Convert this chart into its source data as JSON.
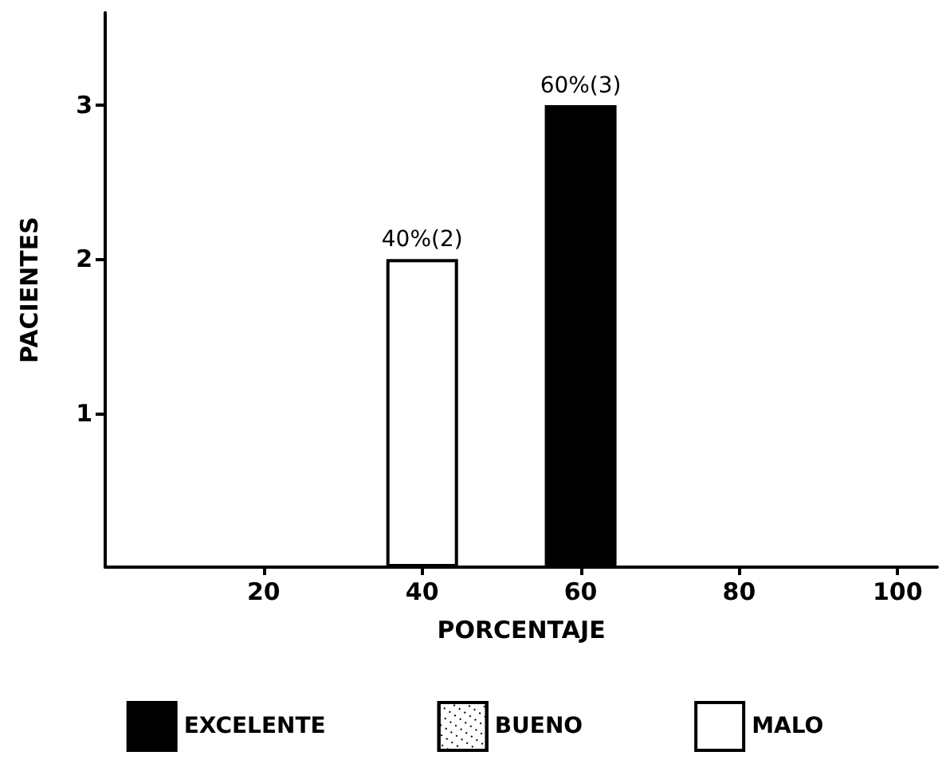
{
  "chart_data": {
    "type": "bar",
    "xlabel": "PORCENTAJE",
    "ylabel": "PACIENTES",
    "xlim": [
      0,
      105
    ],
    "xticks": [
      20,
      40,
      60,
      80,
      100
    ],
    "ylim": [
      0,
      3.6
    ],
    "yticks": [
      1,
      2,
      3
    ],
    "grid": false,
    "legend": "bottom",
    "series": [
      {
        "name": "EXCELENTE",
        "color": "#000000",
        "x": [
          60
        ],
        "values": [
          3
        ],
        "value_labels": [
          "60%(3)"
        ]
      },
      {
        "name": "BUENO",
        "color": "#ffffff"
      },
      {
        "name": "MALO",
        "color": "#ffffff",
        "x": [
          40
        ],
        "values": [
          2
        ],
        "value_labels": [
          "40%(2)"
        ]
      }
    ]
  }
}
